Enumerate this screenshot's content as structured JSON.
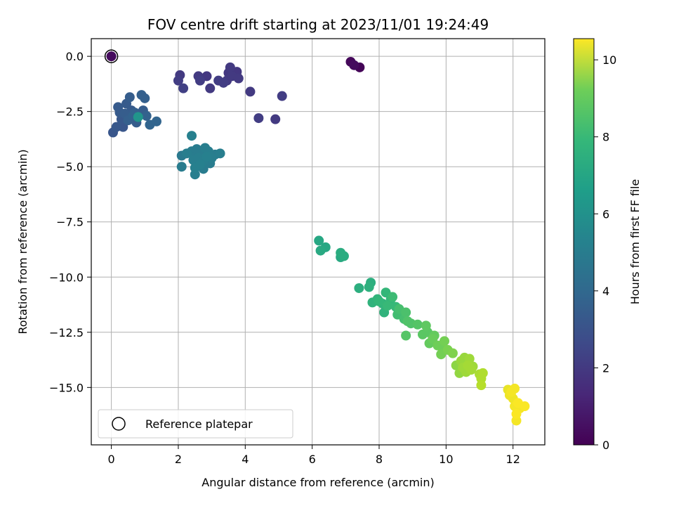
{
  "chart_data": {
    "type": "scatter",
    "title": "FOV centre drift starting at 2023/11/01 19:24:49",
    "xlabel": "Angular distance from reference (arcmin)",
    "ylabel": "Rotation from reference (arcmin)",
    "xlim": [
      -0.6,
      12.95
    ],
    "ylim": [
      -17.6,
      0.8
    ],
    "xticks": [
      0,
      2,
      4,
      6,
      8,
      10,
      12
    ],
    "xtick_labels": [
      "0",
      "2",
      "4",
      "6",
      "8",
      "10",
      "12"
    ],
    "yticks": [
      0.0,
      -2.5,
      -5.0,
      -7.5,
      -10.0,
      -12.5,
      -15.0
    ],
    "ytick_labels": [
      "0.0",
      "−2.5",
      "−5.0",
      "−7.5",
      "−10.0",
      "−12.5",
      "−15.0"
    ],
    "grid": true,
    "colormap": "viridis",
    "colorbar": {
      "label": "Hours from first FF file",
      "range": [
        0,
        10.55
      ],
      "ticks": [
        0,
        2,
        4,
        6,
        8,
        10
      ],
      "tick_labels": [
        "0",
        "2",
        "4",
        "6",
        "8",
        "10"
      ]
    },
    "legend": {
      "position": "lower-left",
      "entries": [
        "Reference platepar"
      ]
    },
    "reference_point": {
      "x": 0.0,
      "y": 0.0,
      "label": "Reference platepar"
    },
    "points": [
      {
        "x": 7.15,
        "y": -0.25,
        "t": 0.2
      },
      {
        "x": 7.25,
        "y": -0.4,
        "t": 0.3
      },
      {
        "x": 7.42,
        "y": -0.5,
        "t": 0.1
      },
      {
        "x": 0.0,
        "y": 0.0,
        "t": 0.3
      },
      {
        "x": 2.0,
        "y": -1.1,
        "t": 1.9
      },
      {
        "x": 2.05,
        "y": -0.85,
        "t": 1.8
      },
      {
        "x": 2.15,
        "y": -1.45,
        "t": 2.0
      },
      {
        "x": 2.6,
        "y": -0.9,
        "t": 1.8
      },
      {
        "x": 2.65,
        "y": -1.1,
        "t": 1.9
      },
      {
        "x": 2.85,
        "y": -0.9,
        "t": 1.7
      },
      {
        "x": 2.95,
        "y": -1.45,
        "t": 1.8
      },
      {
        "x": 3.2,
        "y": -1.1,
        "t": 1.9
      },
      {
        "x": 3.35,
        "y": -1.2,
        "t": 1.9
      },
      {
        "x": 3.45,
        "y": -1.1,
        "t": 1.8
      },
      {
        "x": 3.5,
        "y": -0.75,
        "t": 1.7
      },
      {
        "x": 3.55,
        "y": -0.5,
        "t": 1.8
      },
      {
        "x": 3.6,
        "y": -0.9,
        "t": 1.8
      },
      {
        "x": 3.75,
        "y": -0.7,
        "t": 1.7
      },
      {
        "x": 3.8,
        "y": -1.0,
        "t": 1.8
      },
      {
        "x": 4.15,
        "y": -1.6,
        "t": 1.8
      },
      {
        "x": 4.4,
        "y": -2.8,
        "t": 1.9
      },
      {
        "x": 4.9,
        "y": -2.85,
        "t": 1.8
      },
      {
        "x": 5.1,
        "y": -1.8,
        "t": 1.9
      },
      {
        "x": 0.05,
        "y": -3.45,
        "t": 2.8
      },
      {
        "x": 0.15,
        "y": -3.2,
        "t": 2.9
      },
      {
        "x": 0.2,
        "y": -2.3,
        "t": 3.0
      },
      {
        "x": 0.25,
        "y": -2.55,
        "t": 3.0
      },
      {
        "x": 0.3,
        "y": -2.85,
        "t": 2.9
      },
      {
        "x": 0.35,
        "y": -3.2,
        "t": 2.8
      },
      {
        "x": 0.4,
        "y": -2.6,
        "t": 3.1
      },
      {
        "x": 0.45,
        "y": -2.15,
        "t": 3.0
      },
      {
        "x": 0.5,
        "y": -2.9,
        "t": 3.2
      },
      {
        "x": 0.55,
        "y": -1.85,
        "t": 3.1
      },
      {
        "x": 0.6,
        "y": -2.45,
        "t": 3.0
      },
      {
        "x": 0.65,
        "y": -2.7,
        "t": 3.3
      },
      {
        "x": 0.7,
        "y": -2.55,
        "t": 3.2
      },
      {
        "x": 0.75,
        "y": -3.0,
        "t": 3.1
      },
      {
        "x": 0.8,
        "y": -2.75,
        "t": 5.5
      },
      {
        "x": 0.9,
        "y": -1.75,
        "t": 3.2
      },
      {
        "x": 0.95,
        "y": -2.45,
        "t": 3.1
      },
      {
        "x": 1.0,
        "y": -1.9,
        "t": 3.2
      },
      {
        "x": 1.05,
        "y": -2.7,
        "t": 3.3
      },
      {
        "x": 1.15,
        "y": -3.1,
        "t": 3.4
      },
      {
        "x": 1.35,
        "y": -2.95,
        "t": 3.4
      },
      {
        "x": 2.1,
        "y": -4.5,
        "t": 4.3
      },
      {
        "x": 2.1,
        "y": -5.0,
        "t": 4.4
      },
      {
        "x": 2.25,
        "y": -4.4,
        "t": 4.5
      },
      {
        "x": 2.4,
        "y": -3.6,
        "t": 4.6
      },
      {
        "x": 2.4,
        "y": -4.3,
        "t": 4.4
      },
      {
        "x": 2.45,
        "y": -4.7,
        "t": 4.5
      },
      {
        "x": 2.5,
        "y": -5.05,
        "t": 4.6
      },
      {
        "x": 2.5,
        "y": -5.35,
        "t": 4.5
      },
      {
        "x": 2.55,
        "y": -4.2,
        "t": 4.4
      },
      {
        "x": 2.6,
        "y": -4.6,
        "t": 4.5
      },
      {
        "x": 2.65,
        "y": -4.9,
        "t": 4.6
      },
      {
        "x": 2.7,
        "y": -4.35,
        "t": 4.4
      },
      {
        "x": 2.75,
        "y": -4.75,
        "t": 4.5
      },
      {
        "x": 2.75,
        "y": -5.1,
        "t": 4.4
      },
      {
        "x": 2.8,
        "y": -4.15,
        "t": 4.5
      },
      {
        "x": 2.85,
        "y": -4.55,
        "t": 4.6
      },
      {
        "x": 2.9,
        "y": -4.3,
        "t": 4.5
      },
      {
        "x": 2.95,
        "y": -4.85,
        "t": 4.4
      },
      {
        "x": 3.0,
        "y": -4.6,
        "t": 4.5
      },
      {
        "x": 3.1,
        "y": -4.45,
        "t": 4.4
      },
      {
        "x": 3.25,
        "y": -4.4,
        "t": 4.5
      },
      {
        "x": 6.2,
        "y": -8.35,
        "t": 6.3
      },
      {
        "x": 6.25,
        "y": -8.8,
        "t": 6.4
      },
      {
        "x": 6.4,
        "y": -8.65,
        "t": 6.3
      },
      {
        "x": 6.85,
        "y": -8.9,
        "t": 6.5
      },
      {
        "x": 6.85,
        "y": -9.1,
        "t": 6.4
      },
      {
        "x": 6.95,
        "y": -9.05,
        "t": 6.5
      },
      {
        "x": 7.4,
        "y": -10.5,
        "t": 6.6
      },
      {
        "x": 7.7,
        "y": -10.45,
        "t": 6.7
      },
      {
        "x": 7.75,
        "y": -10.25,
        "t": 6.6
      },
      {
        "x": 7.8,
        "y": -11.15,
        "t": 6.8
      },
      {
        "x": 7.95,
        "y": -11.0,
        "t": 6.9
      },
      {
        "x": 8.0,
        "y": -11.1,
        "t": 7.0
      },
      {
        "x": 8.1,
        "y": -11.2,
        "t": 6.9
      },
      {
        "x": 8.15,
        "y": -11.6,
        "t": 6.8
      },
      {
        "x": 8.2,
        "y": -10.7,
        "t": 7.0
      },
      {
        "x": 8.25,
        "y": -11.3,
        "t": 7.1
      },
      {
        "x": 8.35,
        "y": -11.0,
        "t": 7.0
      },
      {
        "x": 8.4,
        "y": -10.9,
        "t": 7.2
      },
      {
        "x": 8.5,
        "y": -11.35,
        "t": 7.1
      },
      {
        "x": 8.55,
        "y": -11.7,
        "t": 7.3
      },
      {
        "x": 8.6,
        "y": -11.45,
        "t": 7.4
      },
      {
        "x": 8.7,
        "y": -11.75,
        "t": 7.3
      },
      {
        "x": 8.75,
        "y": -11.9,
        "t": 7.4
      },
      {
        "x": 8.8,
        "y": -11.6,
        "t": 7.5
      },
      {
        "x": 8.85,
        "y": -12.0,
        "t": 7.6
      },
      {
        "x": 8.8,
        "y": -12.65,
        "t": 7.7
      },
      {
        "x": 8.95,
        "y": -12.1,
        "t": 7.6
      },
      {
        "x": 9.15,
        "y": -12.15,
        "t": 7.7
      },
      {
        "x": 9.3,
        "y": -12.6,
        "t": 7.8
      },
      {
        "x": 9.4,
        "y": -12.2,
        "t": 7.9
      },
      {
        "x": 9.45,
        "y": -12.5,
        "t": 7.8
      },
      {
        "x": 9.5,
        "y": -13.0,
        "t": 8.0
      },
      {
        "x": 9.6,
        "y": -12.8,
        "t": 8.1
      },
      {
        "x": 9.65,
        "y": -12.65,
        "t": 8.0
      },
      {
        "x": 9.75,
        "y": -13.1,
        "t": 8.2
      },
      {
        "x": 9.85,
        "y": -13.5,
        "t": 8.3
      },
      {
        "x": 9.9,
        "y": -13.2,
        "t": 8.2
      },
      {
        "x": 9.95,
        "y": -12.9,
        "t": 8.3
      },
      {
        "x": 10.05,
        "y": -13.3,
        "t": 8.4
      },
      {
        "x": 10.2,
        "y": -13.45,
        "t": 8.5
      },
      {
        "x": 10.3,
        "y": -14.0,
        "t": 8.7
      },
      {
        "x": 10.4,
        "y": -14.35,
        "t": 8.8
      },
      {
        "x": 10.45,
        "y": -13.8,
        "t": 8.9
      },
      {
        "x": 10.5,
        "y": -14.1,
        "t": 9.0
      },
      {
        "x": 10.55,
        "y": -13.65,
        "t": 8.9
      },
      {
        "x": 10.6,
        "y": -14.3,
        "t": 9.0
      },
      {
        "x": 10.65,
        "y": -14.0,
        "t": 9.1
      },
      {
        "x": 10.7,
        "y": -13.7,
        "t": 9.0
      },
      {
        "x": 10.75,
        "y": -14.2,
        "t": 9.1
      },
      {
        "x": 10.8,
        "y": -14.05,
        "t": 9.0
      },
      {
        "x": 11.0,
        "y": -14.4,
        "t": 9.2
      },
      {
        "x": 11.05,
        "y": -14.6,
        "t": 9.3
      },
      {
        "x": 11.05,
        "y": -14.9,
        "t": 9.4
      },
      {
        "x": 11.1,
        "y": -14.35,
        "t": 9.3
      },
      {
        "x": 11.85,
        "y": -15.1,
        "t": 10.2
      },
      {
        "x": 11.9,
        "y": -15.35,
        "t": 10.3
      },
      {
        "x": 11.95,
        "y": -15.2,
        "t": 10.4
      },
      {
        "x": 12.0,
        "y": -15.5,
        "t": 10.3
      },
      {
        "x": 12.05,
        "y": -15.05,
        "t": 10.4
      },
      {
        "x": 12.05,
        "y": -15.85,
        "t": 10.4
      },
      {
        "x": 12.1,
        "y": -16.2,
        "t": 10.5
      },
      {
        "x": 12.1,
        "y": -16.5,
        "t": 10.4
      },
      {
        "x": 12.15,
        "y": -15.7,
        "t": 10.5
      },
      {
        "x": 12.2,
        "y": -15.95,
        "t": 10.4
      },
      {
        "x": 12.35,
        "y": -15.85,
        "t": 10.5
      }
    ]
  }
}
